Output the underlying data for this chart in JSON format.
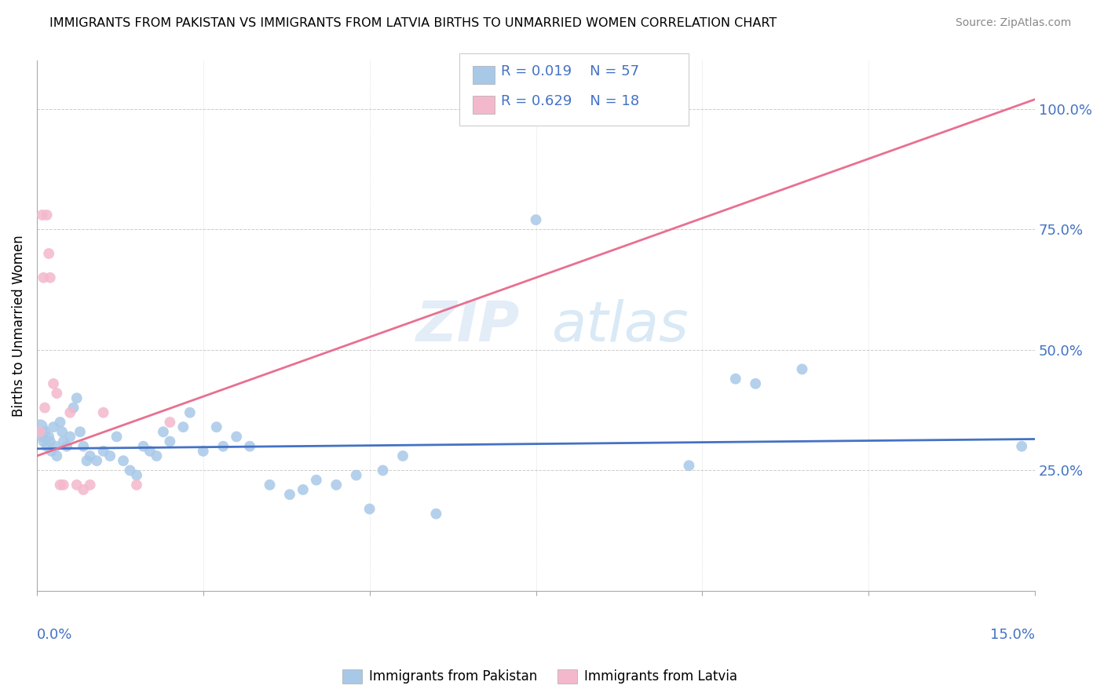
{
  "title": "IMMIGRANTS FROM PAKISTAN VS IMMIGRANTS FROM LATVIA BIRTHS TO UNMARRIED WOMEN CORRELATION CHART",
  "source": "Source: ZipAtlas.com",
  "ylabel": "Births to Unmarried Women",
  "xlim": [
    0.0,
    15.0
  ],
  "ylim": [
    0.0,
    110.0
  ],
  "yticks_right": [
    25.0,
    50.0,
    75.0,
    100.0
  ],
  "ytick_labels_right": [
    "25.0%",
    "50.0%",
    "75.0%",
    "100.0%"
  ],
  "color_pakistan": "#a8c8e8",
  "color_latvia": "#f4b8cc",
  "color_pakistan_line": "#4472c4",
  "color_latvia_line": "#e87090",
  "color_text_blue": "#4472c4",
  "background_color": "#ffffff",
  "pakistan_x": [
    0.05,
    0.08,
    0.1,
    0.12,
    0.15,
    0.18,
    0.2,
    0.22,
    0.25,
    0.28,
    0.3,
    0.35,
    0.38,
    0.4,
    0.45,
    0.5,
    0.55,
    0.6,
    0.65,
    0.7,
    0.75,
    0.8,
    0.9,
    1.0,
    1.1,
    1.2,
    1.3,
    1.4,
    1.5,
    1.6,
    1.7,
    1.8,
    1.9,
    2.0,
    2.2,
    2.3,
    2.5,
    2.7,
    2.8,
    3.0,
    3.2,
    3.5,
    3.8,
    4.0,
    4.2,
    4.5,
    4.8,
    5.0,
    5.2,
    5.5,
    6.0,
    7.5,
    9.8,
    10.5,
    10.8,
    11.5,
    14.8
  ],
  "pakistan_y": [
    34,
    32,
    31,
    33,
    30,
    32,
    31,
    29,
    34,
    30,
    28,
    35,
    33,
    31,
    30,
    32,
    38,
    40,
    33,
    30,
    27,
    28,
    27,
    29,
    28,
    32,
    27,
    25,
    24,
    30,
    29,
    28,
    33,
    31,
    34,
    37,
    29,
    34,
    30,
    32,
    30,
    22,
    20,
    21,
    23,
    22,
    24,
    17,
    25,
    28,
    16,
    77,
    26,
    44,
    43,
    46,
    30
  ],
  "pakistan_sizes": [
    200,
    100,
    100,
    100,
    100,
    100,
    100,
    100,
    100,
    100,
    100,
    100,
    100,
    100,
    100,
    100,
    100,
    100,
    100,
    100,
    100,
    100,
    100,
    100,
    100,
    100,
    100,
    100,
    100,
    100,
    100,
    100,
    100,
    100,
    100,
    100,
    100,
    100,
    100,
    100,
    100,
    100,
    100,
    100,
    100,
    100,
    100,
    100,
    100,
    100,
    100,
    100,
    100,
    100,
    100,
    100,
    100
  ],
  "latvia_x": [
    0.05,
    0.08,
    0.1,
    0.12,
    0.15,
    0.18,
    0.2,
    0.25,
    0.3,
    0.35,
    0.4,
    0.5,
    0.6,
    0.7,
    0.8,
    1.0,
    1.5,
    2.0
  ],
  "latvia_y": [
    33,
    78,
    65,
    38,
    78,
    70,
    65,
    43,
    41,
    22,
    22,
    37,
    22,
    21,
    22,
    37,
    22,
    35
  ],
  "latvia_sizes": [
    100,
    100,
    100,
    100,
    100,
    100,
    100,
    100,
    100,
    100,
    100,
    100,
    100,
    100,
    100,
    100,
    100,
    100
  ],
  "pakistan_trend_x": [
    0.0,
    15.0
  ],
  "pakistan_trend_y": [
    29.5,
    31.5
  ],
  "latvia_trend_x": [
    0.0,
    15.0
  ],
  "latvia_trend_y": [
    28.0,
    102.0
  ]
}
